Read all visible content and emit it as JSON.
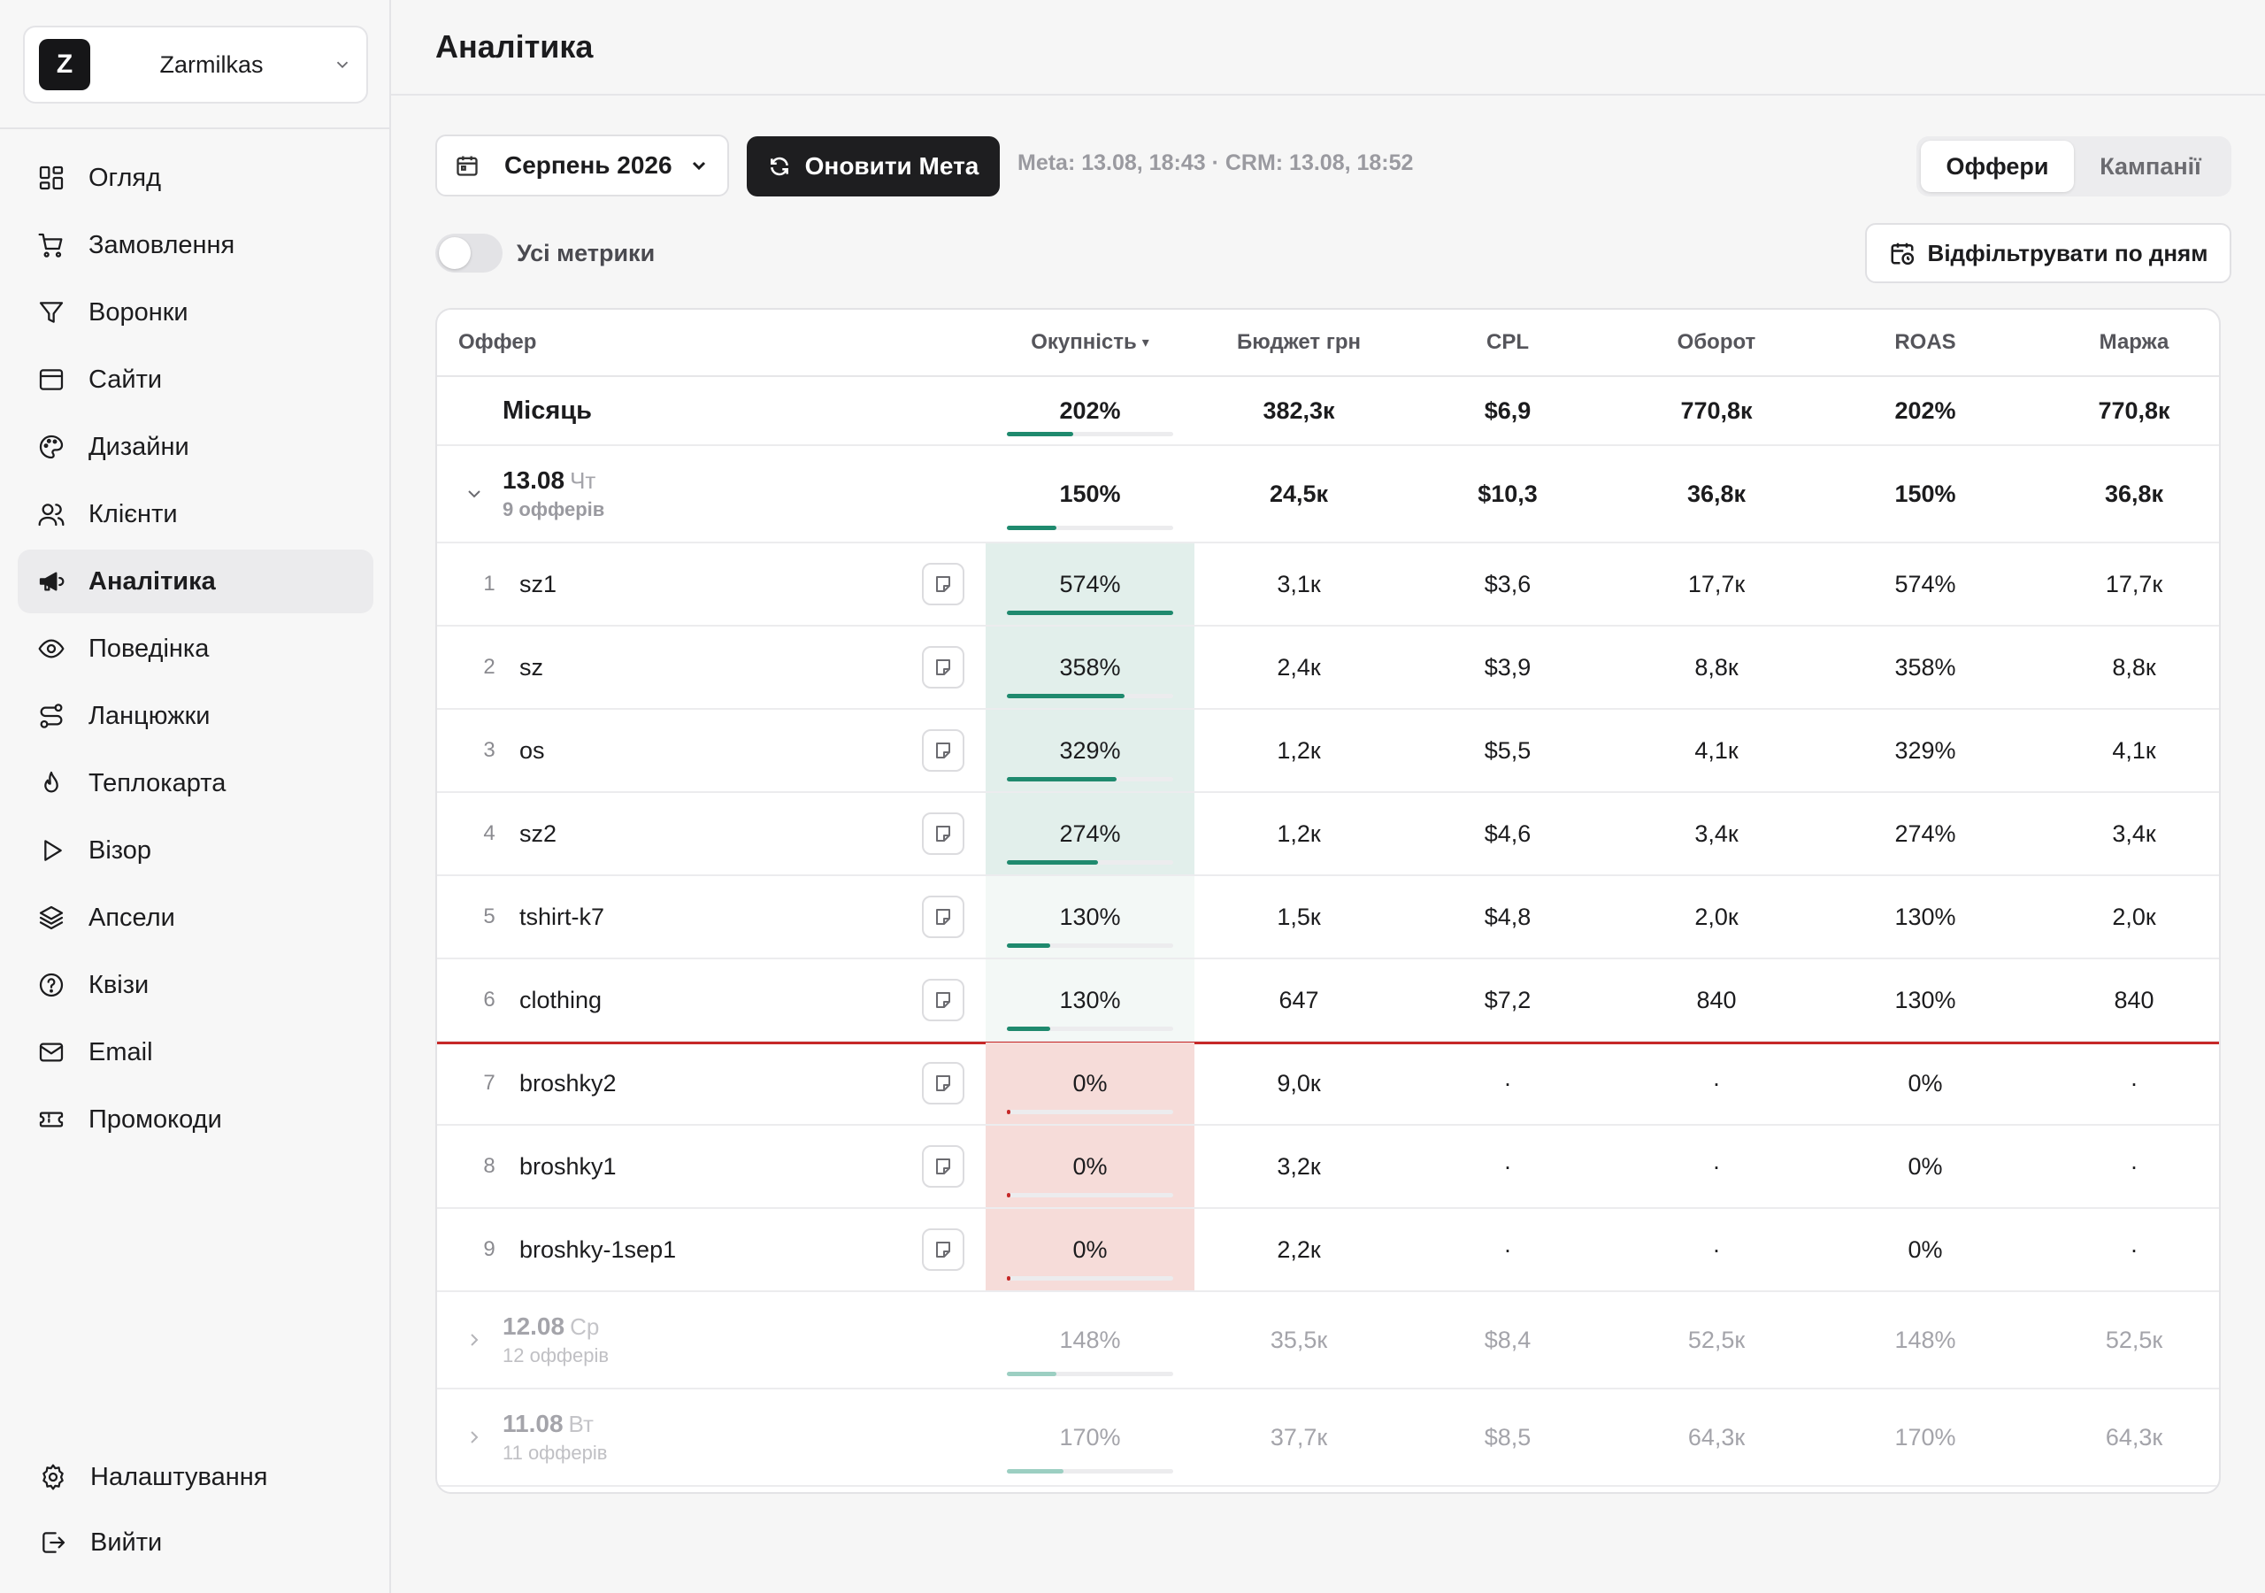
{
  "workspace": {
    "logo_letter": "Z",
    "name": "Zarmilkas"
  },
  "nav": [
    {
      "label": "Огляд",
      "icon": "grid-icon"
    },
    {
      "label": "Замовлення",
      "icon": "cart-icon"
    },
    {
      "label": "Воронки",
      "icon": "funnel-icon"
    },
    {
      "label": "Сайти",
      "icon": "browser-icon"
    },
    {
      "label": "Дизайни",
      "icon": "palette-icon"
    },
    {
      "label": "Клієнти",
      "icon": "users-icon"
    },
    {
      "label": "Аналітика",
      "icon": "megaphone-icon",
      "active": true
    },
    {
      "label": "Поведінка",
      "icon": "eye-icon"
    },
    {
      "label": "Ланцюжки",
      "icon": "route-icon"
    },
    {
      "label": "Теплокарта",
      "icon": "flame-icon"
    },
    {
      "label": "Візор",
      "icon": "play-icon"
    },
    {
      "label": "Апсели",
      "icon": "layers-icon"
    },
    {
      "label": "Квізи",
      "icon": "help-circle-icon"
    },
    {
      "label": "Email",
      "icon": "mail-icon"
    },
    {
      "label": "Промокоди",
      "icon": "ticket-icon"
    }
  ],
  "nav_bottom": [
    {
      "label": "Налаштування",
      "icon": "gear-icon"
    },
    {
      "label": "Вийти",
      "icon": "logout-icon"
    }
  ],
  "page": {
    "title": "Аналітика"
  },
  "controls": {
    "month": "Серпень 2026",
    "refresh_label": "Оновити Мета",
    "sync_status": "Meta: 13.08, 18:43 · CRM: 13.08, 18:52",
    "segments": [
      "Оффери",
      "Кампанії"
    ],
    "active_segment": 0,
    "toggle_label": "Усі метрики",
    "toggle_on": false,
    "filter_label": "Відфільтрувати по дням"
  },
  "table": {
    "headers": {
      "offer": "Оффер",
      "okup": "Окупність",
      "okup_sort": "▾",
      "budget": "Бюджет грн",
      "cpl": "CPL",
      "obor": "Оборот",
      "roas": "ROAS",
      "marzha": "Маржа"
    },
    "month_row": {
      "label": "Місяць",
      "okup": "202%",
      "okup_level": 0.4,
      "budget": "382,3к",
      "cpl": "$6,9",
      "obor": "770,8к",
      "roas": "202%",
      "marzha": "770,8к"
    },
    "days": [
      {
        "date": "13.08",
        "weekday": "Чт",
        "count": "9 офферів",
        "expanded": true,
        "okup": "150%",
        "okup_level": 0.3,
        "budget": "24,5к",
        "cpl": "$10,3",
        "obor": "36,8к",
        "roas": "150%",
        "marzha": "36,8к",
        "offers": [
          {
            "n": "1",
            "name": "sz1",
            "okup": "574%",
            "okup_level": 1.0,
            "budget": "3,1к",
            "cpl": "$3,6",
            "obor": "17,7к",
            "roas": "574%",
            "marzha": "17,7к",
            "status": "good"
          },
          {
            "n": "2",
            "name": "sz",
            "okup": "358%",
            "okup_level": 0.71,
            "budget": "2,4к",
            "cpl": "$3,9",
            "obor": "8,8к",
            "roas": "358%",
            "marzha": "8,8к",
            "status": "good"
          },
          {
            "n": "3",
            "name": "os",
            "okup": "329%",
            "okup_level": 0.66,
            "budget": "1,2к",
            "cpl": "$5,5",
            "obor": "4,1к",
            "roas": "329%",
            "marzha": "4,1к",
            "status": "good"
          },
          {
            "n": "4",
            "name": "sz2",
            "okup": "274%",
            "okup_level": 0.55,
            "budget": "1,2к",
            "cpl": "$4,6",
            "obor": "3,4к",
            "roas": "274%",
            "marzha": "3,4к",
            "status": "good"
          },
          {
            "n": "5",
            "name": "tshirt-k7",
            "okup": "130%",
            "okup_level": 0.26,
            "budget": "1,5к",
            "cpl": "$4,8",
            "obor": "2,0к",
            "roas": "130%",
            "marzha": "2,0к",
            "status": "ok"
          },
          {
            "n": "6",
            "name": "clothing",
            "okup": "130%",
            "okup_level": 0.26,
            "budget": "647",
            "cpl": "$7,2",
            "obor": "840",
            "roas": "130%",
            "marzha": "840",
            "status": "ok"
          },
          {
            "n": "7",
            "name": "broshky2",
            "okup": "0%",
            "okup_level": 0.02,
            "budget": "9,0к",
            "cpl": "·",
            "obor": "·",
            "roas": "0%",
            "marzha": "·",
            "status": "bad"
          },
          {
            "n": "8",
            "name": "broshky1",
            "okup": "0%",
            "okup_level": 0.02,
            "budget": "3,2к",
            "cpl": "·",
            "obor": "·",
            "roas": "0%",
            "marzha": "·",
            "status": "bad"
          },
          {
            "n": "9",
            "name": "broshky-1sep1",
            "okup": "0%",
            "okup_level": 0.02,
            "budget": "2,2к",
            "cpl": "·",
            "obor": "·",
            "roas": "0%",
            "marzha": "·",
            "status": "bad"
          }
        ]
      },
      {
        "date": "12.08",
        "weekday": "Ср",
        "count": "12 офферів",
        "expanded": false,
        "okup": "148%",
        "okup_level": 0.3,
        "budget": "35,5к",
        "cpl": "$8,4",
        "obor": "52,5к",
        "roas": "148%",
        "marzha": "52,5к"
      },
      {
        "date": "11.08",
        "weekday": "Вт",
        "count": "11 офферів",
        "expanded": false,
        "okup": "170%",
        "okup_level": 0.34,
        "budget": "37,7к",
        "cpl": "$8,5",
        "obor": "64,3к",
        "roas": "170%",
        "marzha": "64,3к"
      }
    ]
  },
  "colors": {
    "good_bg": "#e2efeb",
    "ok_bg": "#f3f8f6",
    "bad_bg": "#f6dcd9",
    "bar_green": "#1f8a6e",
    "bar_red": "#c62828",
    "divider_red": "#c62828"
  }
}
